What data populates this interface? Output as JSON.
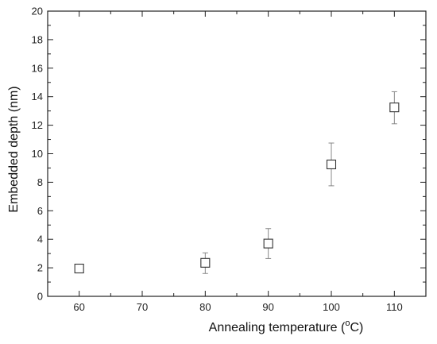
{
  "chart_data": {
    "type": "scatter",
    "xlabel": "Annealing temperature (",
    "xlabel_sup": "o",
    "xlabel_end": "C)",
    "ylabel": "Embedded depth (nm)",
    "xlim": [
      55,
      115
    ],
    "ylim": [
      0,
      20
    ],
    "x_ticks": [
      60,
      70,
      80,
      90,
      100,
      110
    ],
    "y_ticks": [
      0,
      2,
      4,
      6,
      8,
      10,
      12,
      14,
      16,
      18,
      20
    ],
    "x_ticks_labels": [
      "60",
      "70",
      "80",
      "90",
      "100",
      "110"
    ],
    "y_ticks_labels": [
      "0",
      "2",
      "4",
      "6",
      "8",
      "10",
      "12",
      "14",
      "16",
      "18",
      "20"
    ],
    "marker": "open-square",
    "grid": false,
    "x": [
      60,
      80,
      90,
      100,
      110
    ],
    "y": [
      1.95,
      2.35,
      3.7,
      9.25,
      13.25
    ],
    "err_low": [
      1.95,
      1.6,
      2.65,
      7.75,
      12.1
    ],
    "err_high": [
      1.95,
      3.05,
      4.75,
      10.75,
      14.35
    ],
    "colors": {
      "marker": "#333333",
      "axis": "#222222",
      "error": "#888888"
    }
  }
}
